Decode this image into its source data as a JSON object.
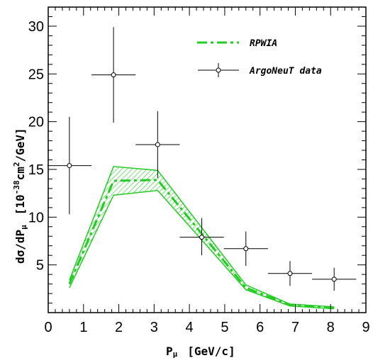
{
  "chart_data": {
    "type": "line",
    "title": "",
    "xlabel": {
      "main": "P",
      "sub": "μ",
      "unit": "[GeV/c]"
    },
    "ylabel": {
      "prefix": "dσ/dP",
      "sub": "μ",
      "unit_open": "[10",
      "unit_exp": "-38",
      "unit_mid": "cm",
      "unit_exp2": "2",
      "unit_close": "/GeV]"
    },
    "xlim": [
      0,
      9
    ],
    "ylim": [
      0,
      32
    ],
    "x_ticks": [
      0,
      1,
      2,
      3,
      4,
      5,
      6,
      7,
      8,
      9
    ],
    "y_ticks": [
      5,
      10,
      15,
      20,
      25,
      30
    ],
    "grid": false,
    "legend_position": "top-right",
    "series": [
      {
        "name": "RPWIA",
        "kind": "band",
        "color": "#22cc22",
        "x": [
          0.6,
          1.85,
          3.1,
          5.6,
          6.85,
          8.1
        ],
        "y": [
          3.0,
          13.8,
          13.9,
          2.6,
          0.8,
          0.5
        ],
        "lower": [
          2.6,
          12.3,
          12.8,
          2.4,
          0.7,
          0.4
        ],
        "upper": [
          3.4,
          15.3,
          14.9,
          2.9,
          0.9,
          0.6
        ]
      },
      {
        "name": "ArgoNeuT data",
        "kind": "points",
        "color": "#000000",
        "x": [
          0.6,
          1.85,
          3.1,
          4.35,
          5.6,
          6.85,
          8.1
        ],
        "x_err": [
          0.625,
          0.625,
          0.625,
          0.625,
          0.625,
          0.625,
          0.625
        ],
        "y": [
          15.4,
          24.9,
          17.6,
          7.9,
          6.7,
          4.1,
          3.5
        ],
        "y_err_low": [
          5.1,
          5.0,
          3.5,
          1.9,
          1.8,
          1.3,
          1.2
        ],
        "y_err_high": [
          5.1,
          5.0,
          3.5,
          2.0,
          1.8,
          1.3,
          1.2
        ]
      }
    ]
  }
}
